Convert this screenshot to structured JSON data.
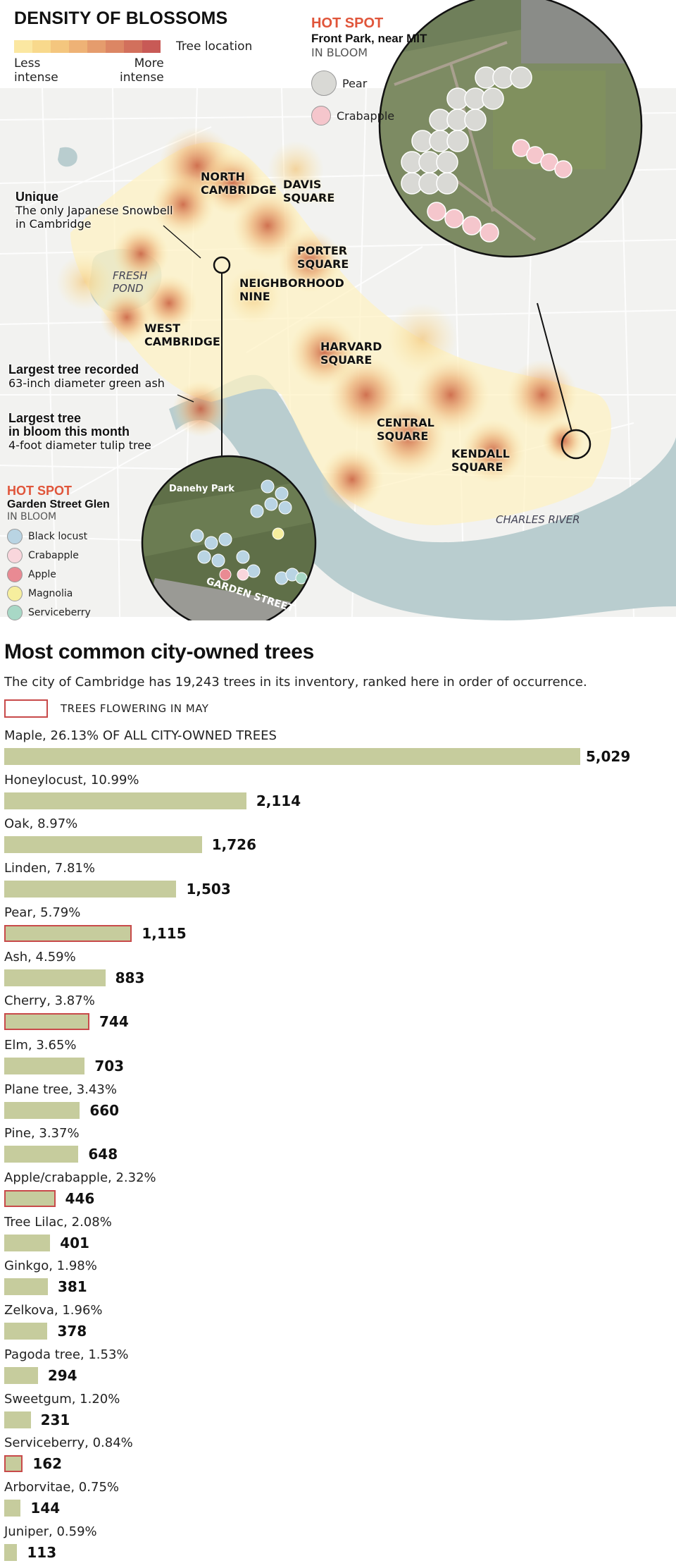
{
  "map": {
    "title": "DENSITY OF BLOSSOMS",
    "legend": {
      "tree_location": "Tree location",
      "less": "Less",
      "less2": "intense",
      "more": "More",
      "more2": "intense",
      "colors": [
        "#fbe7a1",
        "#f8d98c",
        "#f4c67e",
        "#eeb276",
        "#e59c6d",
        "#dc8664",
        "#d2705c",
        "#c85a56"
      ]
    },
    "areas": {
      "north_cambridge_1": "NORTH",
      "north_cambridge_2": "CAMBRIDGE",
      "davis_1": "DAVIS",
      "davis_2": "SQUARE",
      "porter_1": "PORTER",
      "porter_2": "SQUARE",
      "nine_1": "NEIGHBORHOOD",
      "nine_2": "NINE",
      "west_1": "WEST",
      "west_2": "CAMBRIDGE",
      "harvard_1": "HARVARD",
      "harvard_2": "SQUARE",
      "central_1": "CENTRAL",
      "central_2": "SQUARE",
      "kendall_1": "KENDALL",
      "kendall_2": "SQUARE",
      "fresh_1": "FRESH",
      "fresh_2": "POND",
      "charles": "CHARLES RIVER"
    },
    "callouts": {
      "unique_title": "Unique",
      "unique_line1": "The only Japanese Snowbell",
      "unique_line2": "in Cambridge",
      "largest_title": "Largest tree recorded",
      "largest_line1": "63-inch diameter green ash",
      "bloom_title1": "Largest tree",
      "bloom_title2": "in bloom this month",
      "bloom_line1": "4-foot diameter tulip tree"
    },
    "hotspot_mit": {
      "label": "HOT SPOT",
      "name": "Front Park, near MIT",
      "bloom": "IN BLOOM",
      "legend": [
        {
          "name": "Pear",
          "color": "#d9d9d5"
        },
        {
          "name": "Crabapple",
          "color": "#f5c6cc"
        }
      ]
    },
    "hotspot_glen": {
      "label": "HOT SPOT",
      "name": "Garden Street Glen",
      "bloom": "IN BLOOM",
      "park": "Danehy Park",
      "street": "GARDEN STREET",
      "legend": [
        {
          "name": "Black locust",
          "color": "#b9d4e3"
        },
        {
          "name": "Crabapple",
          "color": "#f9d6dc"
        },
        {
          "name": "Apple",
          "color": "#e98a93"
        },
        {
          "name": "Magnolia",
          "color": "#f6ee9e"
        },
        {
          "name": "Serviceberry",
          "color": "#a8d8c6"
        }
      ]
    }
  },
  "chart_data": {
    "type": "bar",
    "orientation": "horizontal",
    "title": "Most common city-owned trees",
    "subtitle": "The city of Cambridge has 19,243 trees in its inventory, ranked here in order of occurrence.",
    "legend_flowering": "TREES FLOWERING IN MAY",
    "colors": {
      "bar": "#c6cc9d",
      "flowering_outline": "#c84a4a"
    },
    "categories": [
      "Maple, 26.13% OF ALL CITY-OWNED TREES",
      "Honeylocust, 10.99%",
      "Oak, 8.97%",
      "Linden, 7.81%",
      "Pear, 5.79%",
      "Ash, 4.59%",
      "Cherry, 3.87%",
      "Elm, 3.65%",
      "Plane tree, 3.43%",
      "Pine, 3.37%",
      "Apple/crabapple, 2.32%",
      "Tree Lilac, 2.08%",
      "Ginkgo, 1.98%",
      "Zelkova, 1.96%",
      "Pagoda tree, 1.53%",
      "Sweetgum, 1.20%",
      "Serviceberry, 0.84%",
      "Arborvitae, 0.75%",
      "Juniper, 0.59%"
    ],
    "values": [
      5029,
      2114,
      1726,
      1503,
      1115,
      883,
      744,
      703,
      660,
      648,
      446,
      401,
      381,
      378,
      294,
      231,
      162,
      144,
      113
    ],
    "value_labels": [
      "5,029",
      "2,114",
      "1,726",
      "1,503",
      "1,115",
      "883",
      "744",
      "703",
      "660",
      "648",
      "446",
      "401",
      "381",
      "378",
      "294",
      "231",
      "162",
      "144",
      "113"
    ],
    "flowering_in_may": [
      false,
      false,
      false,
      false,
      true,
      false,
      true,
      false,
      false,
      false,
      true,
      false,
      false,
      false,
      false,
      false,
      true,
      false,
      false
    ],
    "xlim": [
      0,
      5029
    ]
  }
}
